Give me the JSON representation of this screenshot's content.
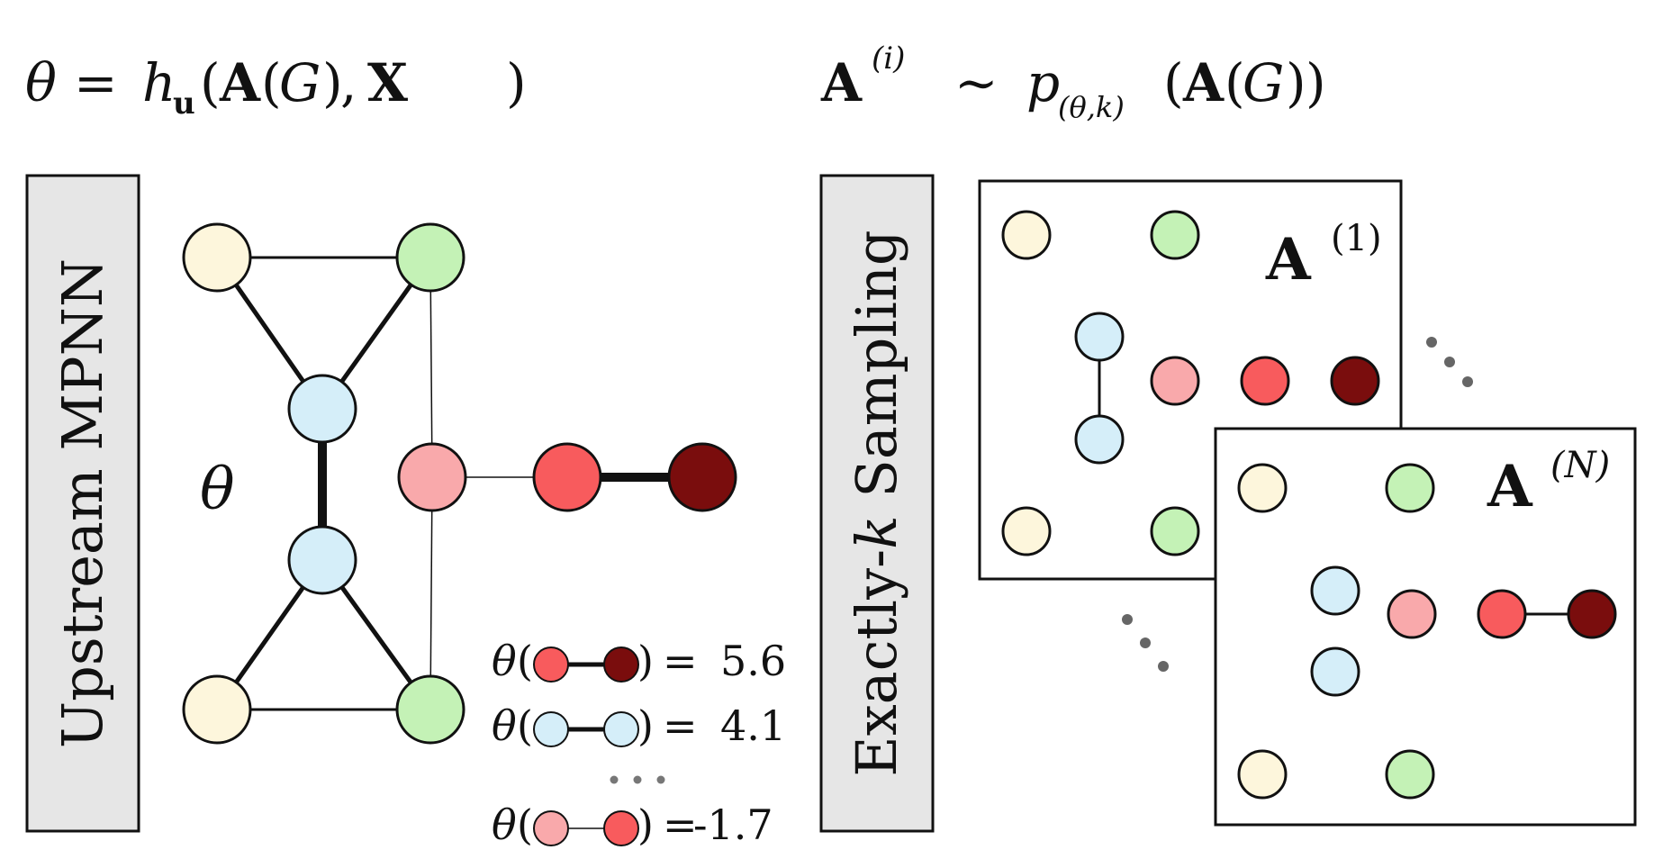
{
  "equations": {
    "left": {
      "lhs": "θ",
      "eq": "=",
      "h": "h",
      "h_sub": "u",
      "open": "(",
      "A": "A",
      "G_open": "(",
      "G": "G",
      "G_close": ")",
      "comma": ",",
      "X": "X",
      "close": ")"
    },
    "right": {
      "A": "A",
      "A_sup": "(i)",
      "sim": "∼",
      "p": "p",
      "p_sub": "(θ,k)",
      "open": "(",
      "A2": "A",
      "G_open": "(",
      "G": "G",
      "G_close": ")",
      "close": ")"
    }
  },
  "left_label": "Upstream MPNN",
  "right_label_prefix": "Exactly-",
  "right_label_k": "k",
  "right_label_suffix": " Sampling",
  "graph": {
    "theta_label": "θ",
    "node_colors": {
      "yellow": "#fdf6dc",
      "green": "#c4f2b6",
      "blue": "#d5eef9",
      "pink": "#f9a9ab",
      "red": "#f85b5d",
      "darkred": "#7a0d0d"
    }
  },
  "scores": [
    {
      "theta": "θ",
      "open": "(",
      "close": ")",
      "eq": "=",
      "value": "5.6"
    },
    {
      "theta": "θ",
      "open": "(",
      "close": ")",
      "eq": "=",
      "value": "4.1"
    },
    {
      "theta": "θ",
      "open": "(",
      "close": ")",
      "eq": "=",
      "value": "-1.7"
    }
  ],
  "samples": [
    {
      "A": "A",
      "sup": "(1)"
    },
    {
      "A": "A",
      "sup": "(N)"
    }
  ]
}
